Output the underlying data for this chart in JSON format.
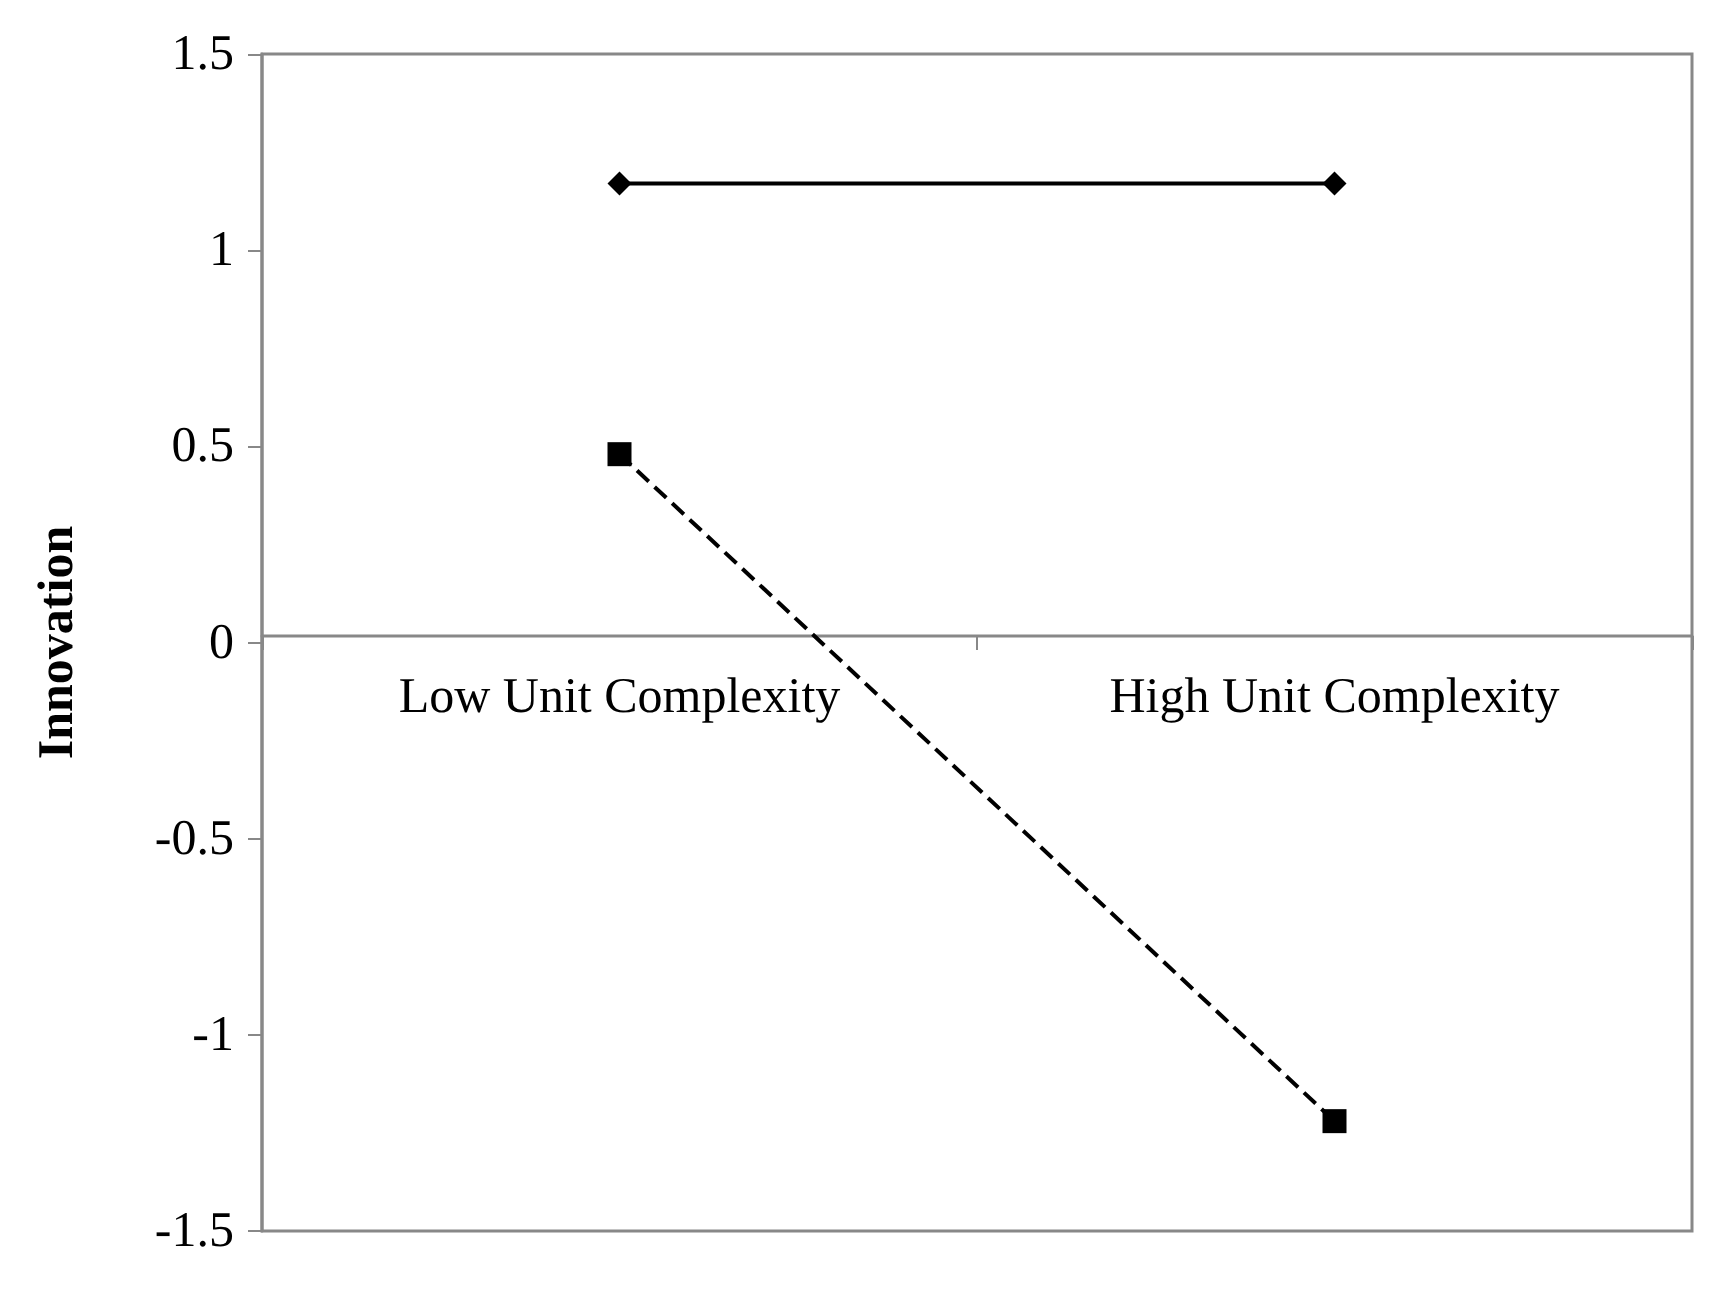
{
  "chart_data": {
    "type": "line",
    "ylabel": "Innovation",
    "categories": [
      "Low Unit Complexity",
      "High Unit Complexity"
    ],
    "series": [
      {
        "color": "#000000",
        "values": [
          1.17,
          1.17
        ],
        "marker": "diamond",
        "line_style": "solid"
      },
      {
        "color": "#000000",
        "values": [
          0.48,
          -1.22
        ],
        "marker": "square",
        "line_style": "dashed"
      }
    ],
    "ylim": [
      -1.5,
      1.5
    ],
    "yticks": [
      -1.5,
      -1,
      -0.5,
      0,
      0.5,
      1,
      1.5
    ],
    "grid": false
  }
}
